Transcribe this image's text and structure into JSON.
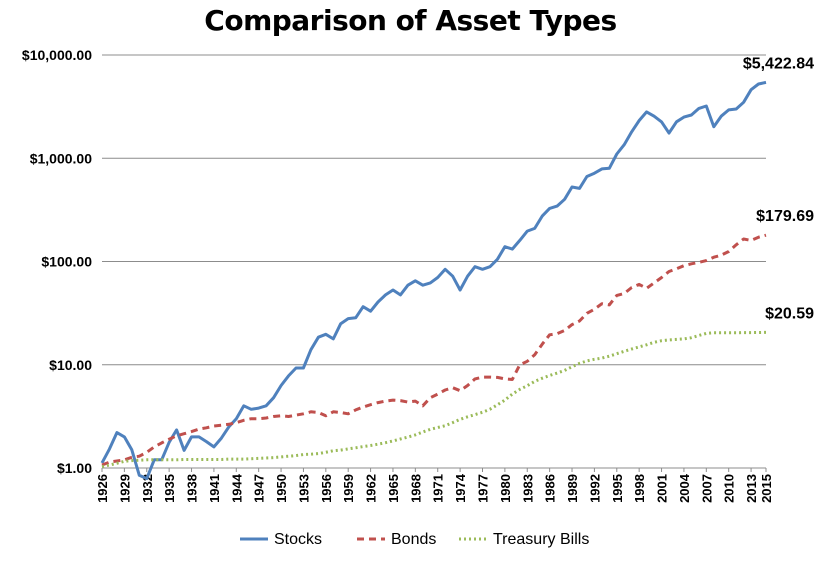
{
  "chart_data": {
    "type": "line",
    "title": "Comparison of Asset Types",
    "yscale": "log",
    "ylim": [
      1,
      10000
    ],
    "y_ticks": [
      1,
      10,
      100,
      1000,
      10000
    ],
    "y_tick_labels": [
      "$1.00",
      "$10.00",
      "$100.00",
      "$1,000.00",
      "$10,000.00"
    ],
    "xlim": [
      1926,
      2015
    ],
    "x_ticks": [
      1926,
      1929,
      1932,
      1935,
      1938,
      1941,
      1944,
      1947,
      1950,
      1953,
      1956,
      1959,
      1962,
      1965,
      1968,
      1971,
      1974,
      1977,
      1980,
      1983,
      1986,
      1989,
      1992,
      1995,
      1998,
      2001,
      2004,
      2007,
      2010,
      2013,
      2015
    ],
    "grid": "horizontal",
    "legend": "bottom",
    "series": [
      {
        "name": "Stocks",
        "color": "#4f81bd",
        "style": "solid",
        "end_label": "$5,422.84",
        "x": [
          1926,
          1927,
          1928,
          1929,
          1930,
          1931,
          1932,
          1933,
          1934,
          1935,
          1936,
          1937,
          1938,
          1939,
          1940,
          1941,
          1942,
          1943,
          1944,
          1945,
          1946,
          1947,
          1948,
          1949,
          1950,
          1951,
          1952,
          1953,
          1954,
          1955,
          1956,
          1957,
          1958,
          1959,
          1960,
          1961,
          1962,
          1963,
          1964,
          1965,
          1966,
          1967,
          1968,
          1969,
          1970,
          1971,
          1972,
          1973,
          1974,
          1975,
          1976,
          1977,
          1978,
          1979,
          1980,
          1981,
          1982,
          1983,
          1984,
          1985,
          1986,
          1987,
          1988,
          1989,
          1990,
          1991,
          1992,
          1993,
          1994,
          1995,
          1996,
          1997,
          1998,
          1999,
          2000,
          2001,
          2002,
          2003,
          2004,
          2005,
          2006,
          2007,
          2008,
          2009,
          2010,
          2011,
          2012,
          2013,
          2014,
          2015
        ],
        "values": [
          1.12,
          1.53,
          2.2,
          2.0,
          1.5,
          0.85,
          0.79,
          1.2,
          1.2,
          1.77,
          2.34,
          1.48,
          2.0,
          2.0,
          1.8,
          1.6,
          1.95,
          2.5,
          3.0,
          4.0,
          3.7,
          3.8,
          4.0,
          4.8,
          6.3,
          7.8,
          9.3,
          9.3,
          14.0,
          18.5,
          19.7,
          17.8,
          25.0,
          28.0,
          28.5,
          36.5,
          33.0,
          40.5,
          47.5,
          53.0,
          47.5,
          59.0,
          65.0,
          59.0,
          62.0,
          70.0,
          84.0,
          72.0,
          53.0,
          72.0,
          89.0,
          84.0,
          89.0,
          105.0,
          139.0,
          132.0,
          160.0,
          197.0,
          209.0,
          275.0,
          327.0,
          344.0,
          400.0,
          527.0,
          511.0,
          666.0,
          717.0,
          789.0,
          800.0,
          1100.0,
          1352.0,
          1804.0,
          2321.0,
          2810.0,
          2554.0,
          2250.0,
          1753.0,
          2256.0,
          2502.0,
          2625.0,
          3039.0,
          3206.0,
          2019.0,
          2554.0,
          2939.0,
          3001.0,
          3481.0,
          4609.0,
          5240.0,
          5422.84
        ]
      },
      {
        "name": "Bonds",
        "color": "#c0504d",
        "style": "dashed",
        "end_label": "$179.69",
        "x": [
          1926,
          1927,
          1928,
          1929,
          1930,
          1931,
          1932,
          1933,
          1934,
          1935,
          1936,
          1937,
          1938,
          1939,
          1940,
          1941,
          1942,
          1943,
          1944,
          1945,
          1946,
          1947,
          1948,
          1949,
          1950,
          1951,
          1952,
          1953,
          1954,
          1955,
          1956,
          1957,
          1958,
          1959,
          1960,
          1961,
          1962,
          1963,
          1964,
          1965,
          1966,
          1967,
          1968,
          1969,
          1970,
          1971,
          1972,
          1973,
          1974,
          1975,
          1976,
          1977,
          1978,
          1979,
          1980,
          1981,
          1982,
          1983,
          1984,
          1985,
          1986,
          1987,
          1988,
          1989,
          1990,
          1991,
          1992,
          1993,
          1994,
          1995,
          1996,
          1997,
          1998,
          1999,
          2000,
          2001,
          2002,
          2003,
          2004,
          2005,
          2006,
          2007,
          2008,
          2009,
          2010,
          2011,
          2012,
          2013,
          2014,
          2015
        ],
        "values": [
          1.07,
          1.14,
          1.17,
          1.2,
          1.27,
          1.3,
          1.42,
          1.6,
          1.75,
          1.9,
          2.05,
          2.15,
          2.25,
          2.38,
          2.45,
          2.55,
          2.6,
          2.65,
          2.75,
          2.9,
          3.0,
          3.0,
          3.05,
          3.15,
          3.2,
          3.15,
          3.25,
          3.35,
          3.5,
          3.45,
          3.2,
          3.5,
          3.45,
          3.35,
          3.65,
          3.9,
          4.1,
          4.3,
          4.45,
          4.55,
          4.5,
          4.35,
          4.45,
          4.0,
          4.8,
          5.2,
          5.7,
          6.0,
          5.6,
          6.3,
          7.3,
          7.6,
          7.6,
          7.55,
          7.3,
          7.2,
          10.0,
          10.8,
          12.5,
          15.8,
          19.5,
          20.0,
          21.5,
          24.5,
          26.5,
          31.5,
          34.5,
          39.0,
          38.0,
          47.0,
          49.0,
          56.0,
          60.0,
          55.0,
          62.0,
          70.0,
          80.0,
          85.0,
          91.0,
          95.0,
          98.0,
          102.0,
          110.0,
          115.0,
          125.0,
          145.0,
          165.0,
          160.0,
          172.0,
          179.69
        ]
      },
      {
        "name": "Treasury Bills",
        "color": "#9bbb59",
        "style": "dotted",
        "end_label": "$20.59",
        "x": [
          1926,
          1927,
          1928,
          1929,
          1930,
          1931,
          1932,
          1933,
          1934,
          1935,
          1936,
          1937,
          1938,
          1939,
          1940,
          1941,
          1942,
          1943,
          1944,
          1945,
          1946,
          1947,
          1948,
          1949,
          1950,
          1951,
          1952,
          1953,
          1954,
          1955,
          1956,
          1957,
          1958,
          1959,
          1960,
          1961,
          1962,
          1963,
          1964,
          1965,
          1966,
          1967,
          1968,
          1969,
          1970,
          1971,
          1972,
          1973,
          1974,
          1975,
          1976,
          1977,
          1978,
          1979,
          1980,
          1981,
          1982,
          1983,
          1984,
          1985,
          1986,
          1987,
          1988,
          1989,
          1990,
          1991,
          1992,
          1993,
          1994,
          1995,
          1996,
          1997,
          1998,
          1999,
          2000,
          2001,
          2002,
          2003,
          2004,
          2005,
          2006,
          2007,
          2008,
          2009,
          2010,
          2011,
          2012,
          2013,
          2014,
          2015
        ],
        "values": [
          1.03,
          1.07,
          1.11,
          1.16,
          1.18,
          1.19,
          1.2,
          1.2,
          1.2,
          1.2,
          1.2,
          1.21,
          1.21,
          1.21,
          1.21,
          1.21,
          1.21,
          1.22,
          1.22,
          1.22,
          1.23,
          1.24,
          1.25,
          1.26,
          1.28,
          1.3,
          1.32,
          1.35,
          1.36,
          1.38,
          1.42,
          1.47,
          1.49,
          1.53,
          1.57,
          1.61,
          1.65,
          1.7,
          1.76,
          1.83,
          1.91,
          1.99,
          2.09,
          2.23,
          2.37,
          2.47,
          2.57,
          2.75,
          2.96,
          3.13,
          3.29,
          3.46,
          3.71,
          4.09,
          4.55,
          5.2,
          5.77,
          6.27,
          6.9,
          7.41,
          7.86,
          8.3,
          8.82,
          9.55,
          10.3,
          10.9,
          11.3,
          11.6,
          12.1,
          12.8,
          13.5,
          14.2,
          14.9,
          15.6,
          16.5,
          17.1,
          17.4,
          17.6,
          17.8,
          18.3,
          19.2,
          20.1,
          20.4,
          20.4,
          20.4,
          20.4,
          20.5,
          20.5,
          20.55,
          20.59
        ]
      }
    ]
  }
}
